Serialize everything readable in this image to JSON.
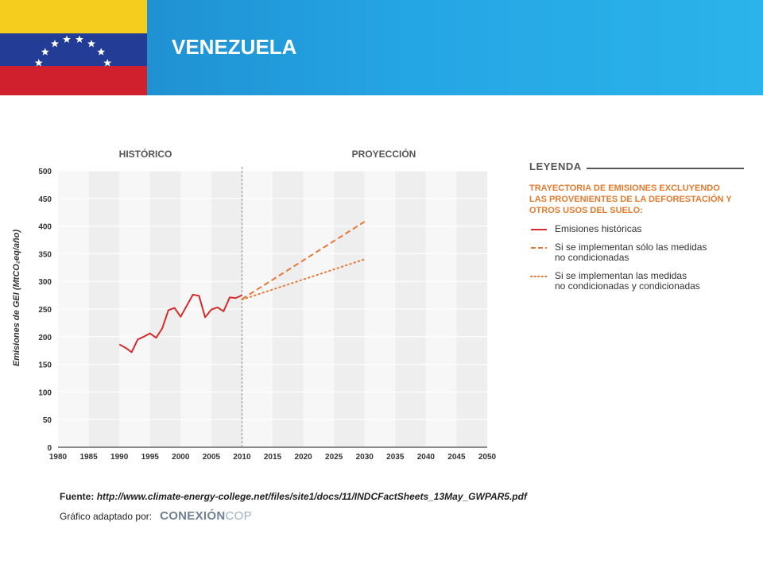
{
  "header": {
    "title": "VENEZUELA"
  },
  "source": {
    "label": "Fuente:",
    "url": "http://www.climate-energy-college.net/files/site1/docs/11/INDCFactSheets_13May_GWPAR5.pdf",
    "adapted_label": "Gráfico adaptado por:",
    "brand_part1": "CONEXIÓN",
    "brand_part2": "COP"
  },
  "legend": {
    "title": "LEYENDA",
    "subtitle_lines": [
      "TRAYECTORIA DE EMISIONES EXCLUYENDO",
      "LAS PROVENIENTES DE LA DEFORESTACIÓN Y",
      "OTROS USOS DEL SUELO:"
    ],
    "items": [
      {
        "style": "solid",
        "color": "#d62b2b",
        "lines": [
          "Emisiones históricas"
        ]
      },
      {
        "style": "dashed",
        "color": "#e8793a",
        "lines": [
          "Si se implementan sólo las medidas",
          "no condicionadas"
        ]
      },
      {
        "style": "dotted",
        "color": "#e8793a",
        "lines": [
          "Si se implementan las medidas",
          "no condicionadas y condicionadas"
        ]
      }
    ]
  },
  "chart_data": {
    "type": "line",
    "section_labels": {
      "left": "HISTÓRICO",
      "right": "PROYECCIÓN"
    },
    "divider_x": 2010,
    "ylabel": "Emisiones de GEI (MtCO₂eq/año)",
    "xlim": [
      1980,
      2050
    ],
    "ylim": [
      0,
      500
    ],
    "x_ticks": [
      1980,
      1985,
      1990,
      1995,
      2000,
      2005,
      2010,
      2015,
      2020,
      2025,
      2030,
      2035,
      2040,
      2045,
      2050
    ],
    "y_ticks": [
      0,
      50,
      100,
      150,
      200,
      250,
      300,
      350,
      400,
      450,
      500
    ],
    "grid": true,
    "series": [
      {
        "name": "Emisiones históricas",
        "style": "solid",
        "color": "#d62b2b",
        "x": [
          1990,
          1991,
          1992,
          1993,
          1994,
          1995,
          1996,
          1997,
          1998,
          1999,
          2000,
          2001,
          2002,
          2003,
          2004,
          2005,
          2006,
          2007,
          2008,
          2009,
          2010
        ],
        "y": [
          186,
          180,
          172,
          195,
          200,
          206,
          198,
          215,
          248,
          252,
          236,
          256,
          276,
          274,
          235,
          249,
          253,
          246,
          271,
          270,
          275
        ]
      },
      {
        "name": "Si se implementan sólo las medidas no condicionadas",
        "style": "dashed",
        "color": "#e8793a",
        "x": [
          2010,
          2030
        ],
        "y": [
          268,
          408
        ]
      },
      {
        "name": "Si se implementan las medidas no condicionadas y condicionadas",
        "style": "dotted",
        "color": "#e8793a",
        "x": [
          2010,
          2030
        ],
        "y": [
          267,
          340
        ]
      }
    ]
  }
}
